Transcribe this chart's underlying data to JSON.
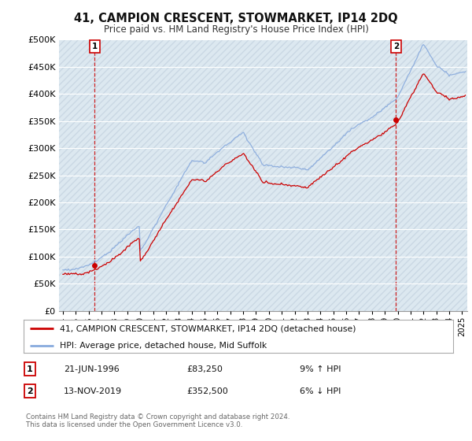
{
  "title": "41, CAMPION CRESCENT, STOWMARKET, IP14 2DQ",
  "subtitle": "Price paid vs. HM Land Registry's House Price Index (HPI)",
  "ylim": [
    0,
    500000
  ],
  "yticks": [
    0,
    50000,
    100000,
    150000,
    200000,
    250000,
    300000,
    350000,
    400000,
    450000,
    500000
  ],
  "ytick_labels": [
    "£0",
    "£50K",
    "£100K",
    "£150K",
    "£200K",
    "£250K",
    "£300K",
    "£350K",
    "£400K",
    "£450K",
    "£500K"
  ],
  "xlim_start": 1993.7,
  "xlim_end": 2025.4,
  "transaction1_date": 1996.47,
  "transaction1_price": 83250,
  "transaction1_label": "1",
  "transaction2_date": 2019.87,
  "transaction2_price": 352500,
  "transaction2_label": "2",
  "legend_line1": "41, CAMPION CRESCENT, STOWMARKET, IP14 2DQ (detached house)",
  "legend_line2": "HPI: Average price, detached house, Mid Suffolk",
  "annotation1_date": "21-JUN-1996",
  "annotation1_price": "£83,250",
  "annotation1_hpi": "9% ↑ HPI",
  "annotation2_date": "13-NOV-2019",
  "annotation2_price": "£352,500",
  "annotation2_hpi": "6% ↓ HPI",
  "footer": "Contains HM Land Registry data © Crown copyright and database right 2024.\nThis data is licensed under the Open Government Licence v3.0.",
  "paid_color": "#cc0000",
  "hpi_color": "#88aadd",
  "background_color": "#ffffff",
  "plot_bg_color": "#dce8f0",
  "grid_color": "#ffffff",
  "vline_color": "#cc0000"
}
